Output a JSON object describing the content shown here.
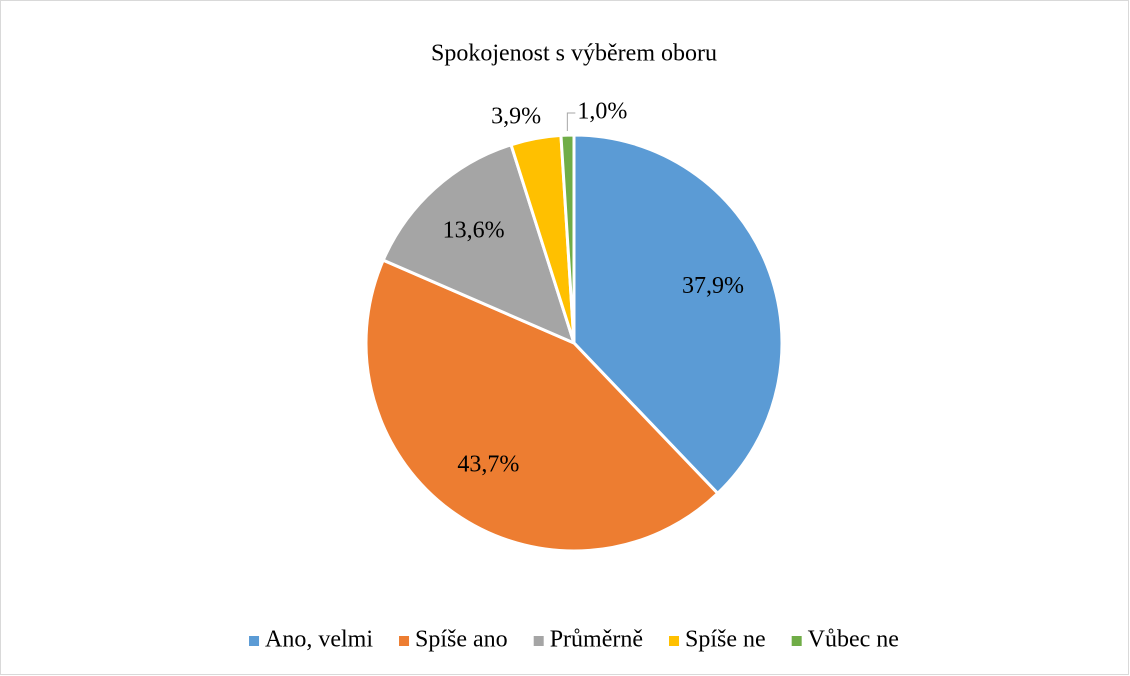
{
  "chart_data": {
    "type": "pie",
    "title": "Spokojenost s výběrem oboru",
    "categories": [
      "Ano, velmi",
      "Spíše ano",
      "Průměrně",
      "Spíše ne",
      "Vůbec ne"
    ],
    "values": [
      37.9,
      43.7,
      13.6,
      3.9,
      1.0
    ],
    "value_labels": [
      "37,9%",
      "43,7%",
      "13,6%",
      "3,9%",
      "1,0%"
    ],
    "colors": [
      "#5b9bd5",
      "#ed7d31",
      "#a5a5a5",
      "#ffc000",
      "#70ad47"
    ],
    "legend": "bottom"
  }
}
